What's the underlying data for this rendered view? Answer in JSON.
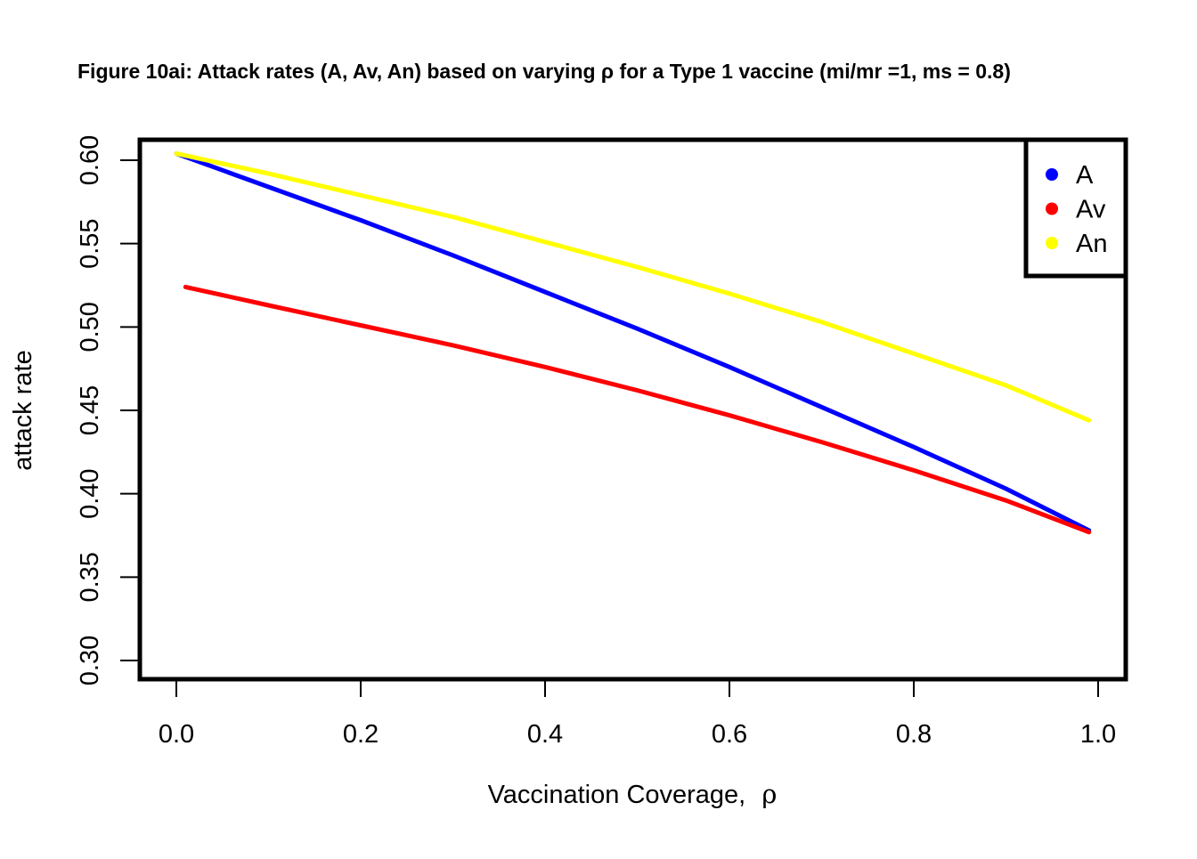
{
  "chart_data": {
    "type": "line",
    "title": "Figure 10ai: Attack rates (A, Av, An) based on varying ρ for a Type 1 vaccine (mi/mr =1, ms = 0.8)",
    "xlabel": "Vaccination Coverage,",
    "xlabel_symbol": "ρ",
    "ylabel": "attack rate",
    "xlim": [
      0.0,
      1.0
    ],
    "ylim": [
      0.3,
      0.6
    ],
    "x_ticks": [
      0.0,
      0.2,
      0.4,
      0.6,
      0.8,
      1.0
    ],
    "x_tick_labels": [
      "0.0",
      "0.2",
      "0.4",
      "0.6",
      "0.8",
      "1.0"
    ],
    "y_ticks": [
      0.3,
      0.35,
      0.4,
      0.45,
      0.5,
      0.55,
      0.6
    ],
    "y_tick_labels": [
      "0.30",
      "0.35",
      "0.40",
      "0.45",
      "0.50",
      "0.55",
      "0.60"
    ],
    "grid": false,
    "legend_position": "top-right",
    "series": [
      {
        "name": "A",
        "color": "#0000ff",
        "x": [
          0.0,
          0.1,
          0.2,
          0.3,
          0.4,
          0.5,
          0.6,
          0.7,
          0.8,
          0.9,
          0.99
        ],
        "y": [
          0.604,
          0.584,
          0.564,
          0.543,
          0.521,
          0.499,
          0.476,
          0.452,
          0.428,
          0.403,
          0.378
        ]
      },
      {
        "name": "Av",
        "color": "#ff0000",
        "x": [
          0.01,
          0.1,
          0.2,
          0.3,
          0.4,
          0.5,
          0.6,
          0.7,
          0.8,
          0.9,
          0.99
        ],
        "y": [
          0.524,
          0.513,
          0.501,
          0.489,
          0.476,
          0.462,
          0.447,
          0.431,
          0.414,
          0.396,
          0.377
        ]
      },
      {
        "name": "An",
        "color": "#ffff00",
        "x": [
          0.0,
          0.1,
          0.2,
          0.3,
          0.4,
          0.5,
          0.6,
          0.7,
          0.8,
          0.9,
          0.99
        ],
        "y": [
          0.604,
          0.592,
          0.579,
          0.566,
          0.551,
          0.536,
          0.52,
          0.503,
          0.484,
          0.465,
          0.444
        ]
      }
    ]
  }
}
